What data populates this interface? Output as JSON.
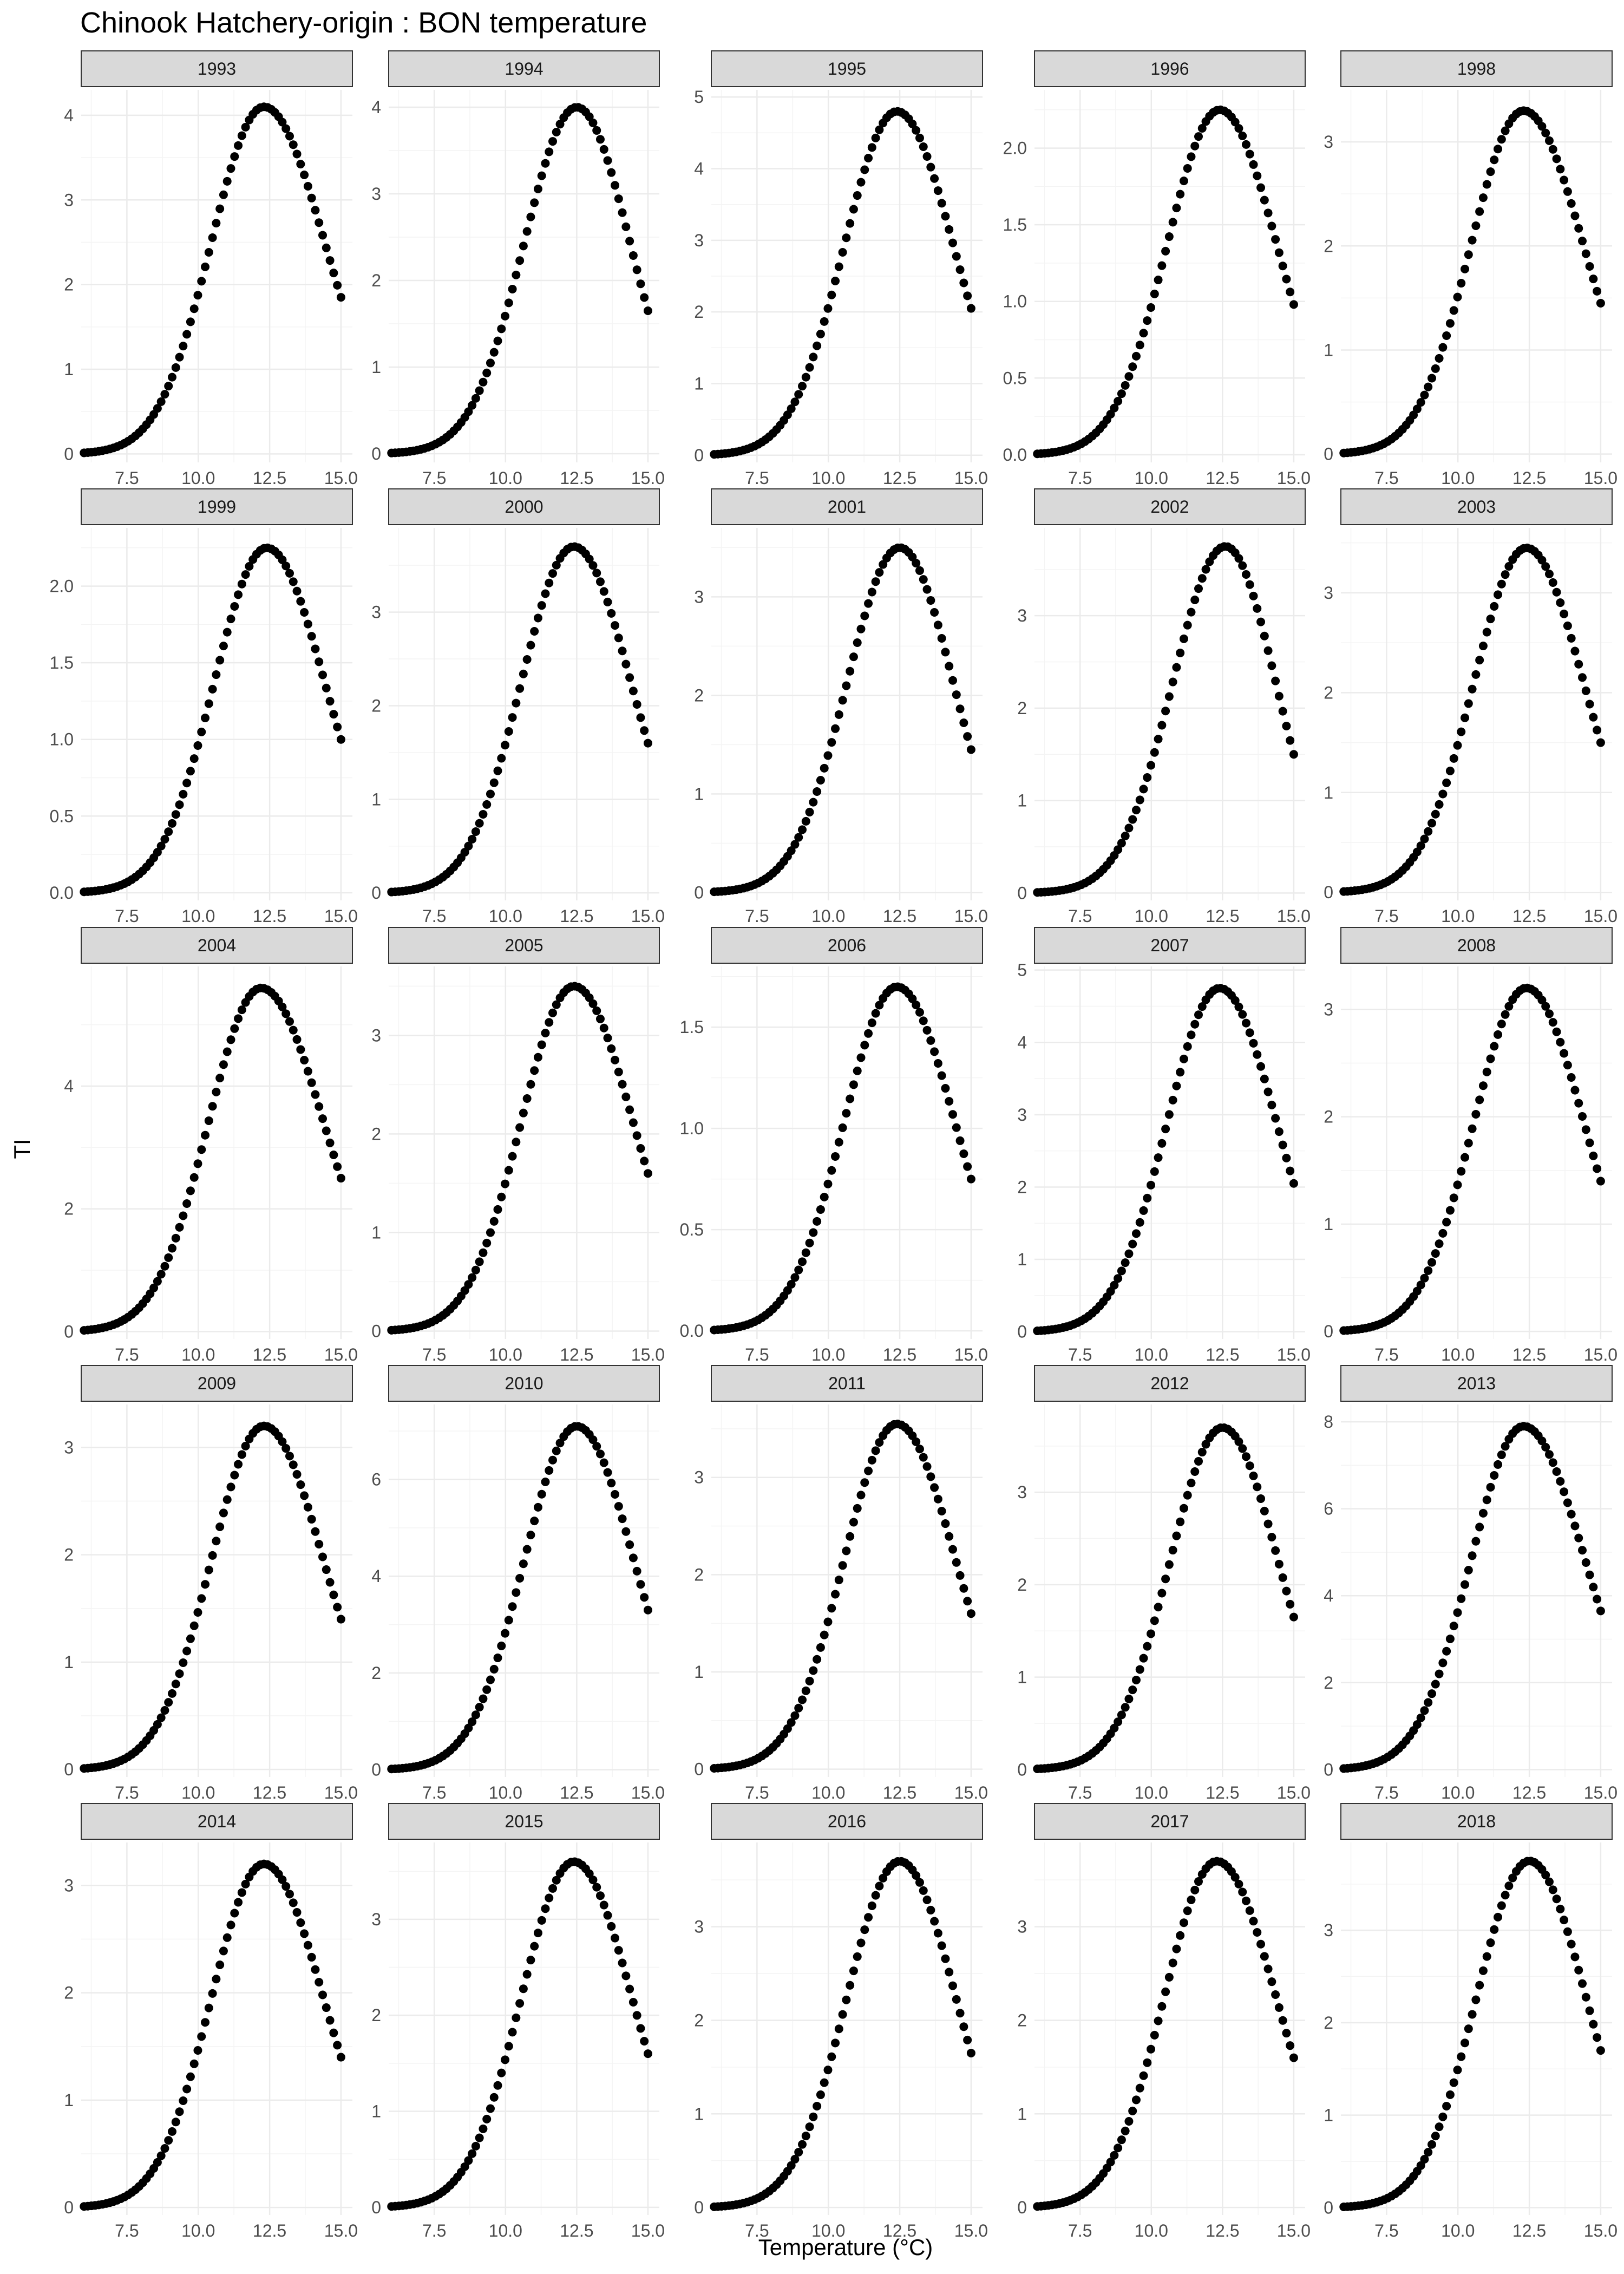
{
  "chart_data": {
    "type": "scatter",
    "title": "Chinook Hatchery-origin : BON temperature",
    "xlabel": "Temperature (°C)",
    "ylabel": "TI",
    "facet_layout": {
      "columns": 5,
      "rows": 5
    },
    "xlim": [
      5.9,
      15.4
    ],
    "x_ticks": [
      7.5,
      10.0,
      12.5,
      15.0
    ],
    "x_tick_labels": [
      "7.5",
      "10.0",
      "12.5",
      "15.0"
    ],
    "grid": true,
    "point_color": "#000000",
    "strip_fill": "#d9d9d9",
    "panels": [
      {
        "label": "1993",
        "peak": 4.1,
        "end": 1.85,
        "peak_x": 12.3,
        "ylim": [
          -0.1,
          4.3
        ],
        "ticks": [
          0,
          1,
          2,
          3,
          4
        ],
        "tick_labels": [
          "0",
          "1",
          "2",
          "3",
          "4"
        ]
      },
      {
        "label": "1994",
        "peak": 4.0,
        "end": 1.65,
        "peak_x": 12.5,
        "ylim": [
          -0.1,
          4.2
        ],
        "ticks": [
          0,
          1,
          2,
          3,
          4
        ],
        "tick_labels": [
          "0",
          "1",
          "2",
          "3",
          "4"
        ]
      },
      {
        "label": "1995",
        "peak": 4.8,
        "end": 2.05,
        "peak_x": 12.4,
        "ylim": [
          -0.1,
          5.1
        ],
        "ticks": [
          0,
          1,
          2,
          3,
          4,
          5
        ],
        "tick_labels": [
          "0",
          "1",
          "2",
          "3",
          "4",
          "5"
        ]
      },
      {
        "label": "1996",
        "peak": 2.25,
        "end": 0.98,
        "peak_x": 12.4,
        "ylim": [
          -0.05,
          2.38
        ],
        "ticks": [
          0,
          0.5,
          1,
          1.5,
          2
        ],
        "tick_labels": [
          "0.0",
          "0.5",
          "1.0",
          "1.5",
          "2.0"
        ]
      },
      {
        "label": "1998",
        "peak": 3.3,
        "end": 1.45,
        "peak_x": 12.3,
        "ylim": [
          -0.08,
          3.5
        ],
        "ticks": [
          0,
          1,
          2,
          3
        ],
        "tick_labels": [
          "0",
          "1",
          "2",
          "3"
        ]
      },
      {
        "label": "1999",
        "peak": 2.25,
        "end": 1.0,
        "peak_x": 12.4,
        "ylim": [
          -0.05,
          2.38
        ],
        "ticks": [
          0,
          0.5,
          1,
          1.5,
          2
        ],
        "tick_labels": [
          "0.0",
          "0.5",
          "1.0",
          "1.5",
          "2.0"
        ]
      },
      {
        "label": "2000",
        "peak": 3.7,
        "end": 1.6,
        "peak_x": 12.4,
        "ylim": [
          -0.08,
          3.9
        ],
        "ticks": [
          0,
          1,
          2,
          3
        ],
        "tick_labels": [
          "0",
          "1",
          "2",
          "3"
        ]
      },
      {
        "label": "2001",
        "peak": 3.5,
        "end": 1.45,
        "peak_x": 12.5,
        "ylim": [
          -0.08,
          3.7
        ],
        "ticks": [
          0,
          1,
          2,
          3
        ],
        "tick_labels": [
          "0",
          "1",
          "2",
          "3"
        ]
      },
      {
        "label": "2002",
        "peak": 3.75,
        "end": 1.5,
        "peak_x": 12.6,
        "ylim": [
          -0.08,
          3.95
        ],
        "ticks": [
          0,
          1,
          2,
          3
        ],
        "tick_labels": [
          "0",
          "1",
          "2",
          "3"
        ]
      },
      {
        "label": "2003",
        "peak": 3.45,
        "end": 1.5,
        "peak_x": 12.4,
        "ylim": [
          -0.08,
          3.65
        ],
        "ticks": [
          0,
          1,
          2,
          3
        ],
        "tick_labels": [
          "0",
          "1",
          "2",
          "3"
        ]
      },
      {
        "label": "2004",
        "peak": 5.6,
        "end": 2.5,
        "peak_x": 12.2,
        "ylim": [
          -0.12,
          5.95
        ],
        "ticks": [
          0,
          2,
          4
        ],
        "tick_labels": [
          "0",
          "2",
          "4"
        ]
      },
      {
        "label": "2005",
        "peak": 3.5,
        "end": 1.6,
        "peak_x": 12.4,
        "ylim": [
          -0.08,
          3.7
        ],
        "ticks": [
          0,
          1,
          2,
          3
        ],
        "tick_labels": [
          "0",
          "1",
          "2",
          "3"
        ]
      },
      {
        "label": "2006",
        "peak": 1.7,
        "end": 0.75,
        "peak_x": 12.4,
        "ylim": [
          -0.04,
          1.8
        ],
        "ticks": [
          0,
          0.5,
          1,
          1.5
        ],
        "tick_labels": [
          "0.0",
          "0.5",
          "1.0",
          "1.5"
        ]
      },
      {
        "label": "2007",
        "peak": 4.75,
        "end": 2.05,
        "peak_x": 12.4,
        "ylim": [
          -0.1,
          5.05
        ],
        "ticks": [
          0,
          1,
          2,
          3,
          4,
          5
        ],
        "tick_labels": [
          "0",
          "1",
          "2",
          "3",
          "4",
          "5"
        ]
      },
      {
        "label": "2008",
        "peak": 3.2,
        "end": 1.4,
        "peak_x": 12.4,
        "ylim": [
          -0.07,
          3.4
        ],
        "ticks": [
          0,
          1,
          2,
          3
        ],
        "tick_labels": [
          "0",
          "1",
          "2",
          "3"
        ]
      },
      {
        "label": "2009",
        "peak": 3.2,
        "end": 1.4,
        "peak_x": 12.3,
        "ylim": [
          -0.07,
          3.4
        ],
        "ticks": [
          0,
          1,
          2,
          3
        ],
        "tick_labels": [
          "0",
          "1",
          "2",
          "3"
        ]
      },
      {
        "label": "2010",
        "peak": 7.1,
        "end": 3.3,
        "peak_x": 12.5,
        "ylim": [
          -0.15,
          7.55
        ],
        "ticks": [
          0,
          2,
          4,
          6
        ],
        "tick_labels": [
          "0",
          "2",
          "4",
          "6"
        ]
      },
      {
        "label": "2011",
        "peak": 3.55,
        "end": 1.6,
        "peak_x": 12.4,
        "ylim": [
          -0.08,
          3.75
        ],
        "ticks": [
          0,
          1,
          2,
          3
        ],
        "tick_labels": [
          "0",
          "1",
          "2",
          "3"
        ]
      },
      {
        "label": "2012",
        "peak": 3.7,
        "end": 1.65,
        "peak_x": 12.5,
        "ylim": [
          -0.08,
          3.95
        ],
        "ticks": [
          0,
          1,
          2,
          3
        ],
        "tick_labels": [
          "0",
          "1",
          "2",
          "3"
        ]
      },
      {
        "label": "2013",
        "peak": 7.9,
        "end": 3.65,
        "peak_x": 12.3,
        "ylim": [
          -0.17,
          8.4
        ],
        "ticks": [
          0,
          2,
          4,
          6,
          8
        ],
        "tick_labels": [
          "0",
          "2",
          "4",
          "6",
          "8"
        ]
      },
      {
        "label": "2014",
        "peak": 3.2,
        "end": 1.4,
        "peak_x": 12.3,
        "ylim": [
          -0.07,
          3.4
        ],
        "ticks": [
          0,
          1,
          2,
          3
        ],
        "tick_labels": [
          "0",
          "1",
          "2",
          "3"
        ]
      },
      {
        "label": "2015",
        "peak": 3.6,
        "end": 1.6,
        "peak_x": 12.4,
        "ylim": [
          -0.08,
          3.8
        ],
        "ticks": [
          0,
          1,
          2,
          3
        ],
        "tick_labels": [
          "0",
          "1",
          "2",
          "3"
        ]
      },
      {
        "label": "2016",
        "peak": 3.7,
        "end": 1.65,
        "peak_x": 12.5,
        "ylim": [
          -0.08,
          3.9
        ],
        "ticks": [
          0,
          1,
          2,
          3
        ],
        "tick_labels": [
          "0",
          "1",
          "2",
          "3"
        ]
      },
      {
        "label": "2017",
        "peak": 3.7,
        "end": 1.6,
        "peak_x": 12.3,
        "ylim": [
          -0.08,
          3.9
        ],
        "ticks": [
          0,
          1,
          2,
          3
        ],
        "tick_labels": [
          "0",
          "1",
          "2",
          "3"
        ]
      },
      {
        "label": "2018",
        "peak": 3.75,
        "end": 1.7,
        "peak_x": 12.5,
        "ylim": [
          -0.08,
          3.95
        ],
        "ticks": [
          0,
          1,
          2,
          3
        ],
        "tick_labels": [
          "0",
          "1",
          "2",
          "3"
        ]
      }
    ]
  }
}
